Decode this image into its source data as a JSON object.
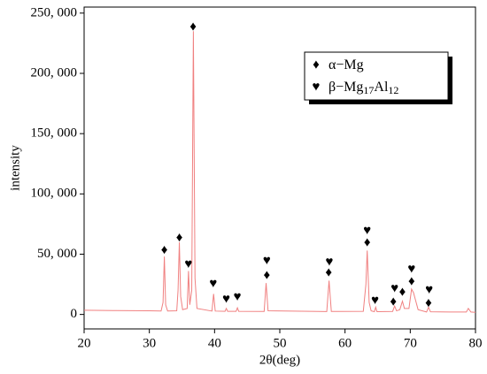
{
  "chart_data": {
    "type": "line",
    "x_label": "2θ(deg)",
    "y_label": "intensity",
    "xlim": [
      20,
      80
    ],
    "xticks": [
      20,
      30,
      40,
      50,
      60,
      70,
      80
    ],
    "ylim": [
      -12000,
      255000
    ],
    "yticks": [
      0,
      {
        "value": 50000,
        "label": "50, 000"
      },
      {
        "value": 100000,
        "label": "100, 000"
      },
      {
        "value": 150000,
        "label": "150, 000"
      },
      {
        "value": 200000,
        "label": "200, 000"
      },
      {
        "value": 250000,
        "label": "250, 000"
      }
    ],
    "series": [
      {
        "color": "#f08080",
        "x": [
          20,
          25,
          30,
          31.8,
          32.1,
          32.3,
          32.5,
          32.8,
          34.2,
          34.4,
          34.6,
          34.8,
          35.1,
          35.8,
          36.0,
          36.2,
          36.5,
          36.75,
          37.0,
          37.3,
          39.6,
          39.85,
          40.1,
          41.6,
          41.8,
          42.0,
          43.3,
          43.5,
          43.7,
          47.6,
          47.9,
          48.2,
          57.2,
          57.55,
          57.9,
          62.8,
          63.2,
          63.4,
          63.7,
          64.0,
          64.5,
          64.7,
          64.9,
          67.3,
          67.6,
          67.9,
          68.4,
          68.8,
          69.1,
          69.8,
          70.2,
          70.5,
          70.8,
          71.2,
          72.5,
          72.8,
          73.1,
          76.0,
          78.6,
          78.9,
          79.3,
          80
        ],
        "values": [
          3500,
          3200,
          3000,
          2900,
          10000,
          48000,
          8000,
          2900,
          3000,
          20000,
          60000,
          15000,
          4000,
          5000,
          36000,
          8000,
          20000,
          235000,
          30000,
          5000,
          2800,
          17000,
          2800,
          2600,
          5000,
          2600,
          2600,
          5500,
          2600,
          2500,
          26000,
          3000,
          2400,
          28000,
          2500,
          2600,
          25000,
          53000,
          10000,
          3000,
          2300,
          6000,
          2300,
          2500,
          7000,
          3000,
          4000,
          11000,
          5000,
          5000,
          21000,
          18000,
          12000,
          4000,
          2000,
          6000,
          2200,
          2000,
          2000,
          5000,
          2000,
          1800
        ]
      }
    ],
    "markers": [
      {
        "text": "♦",
        "x": 32.3,
        "y": 53000
      },
      {
        "text": "♦",
        "x": 34.6,
        "y": 63000
      },
      {
        "text": "♦",
        "x": 36.7,
        "y": 238000
      },
      {
        "text": "♥",
        "x": 36.0,
        "y": 41000
      },
      {
        "text": "♥",
        "x": 39.8,
        "y": 25000
      },
      {
        "text": "♥",
        "x": 41.8,
        "y": 12000
      },
      {
        "text": "♥",
        "x": 43.5,
        "y": 14000
      },
      {
        "text": "♥",
        "x": 48.0,
        "y": 44000
      },
      {
        "text": "♦",
        "x": 48.0,
        "y": 32000
      },
      {
        "text": "♥",
        "x": 57.6,
        "y": 43000
      },
      {
        "text": "♦",
        "x": 57.5,
        "y": 34000
      },
      {
        "text": "♥",
        "x": 63.4,
        "y": 69000
      },
      {
        "text": "♦",
        "x": 63.4,
        "y": 59000
      },
      {
        "text": "♥",
        "x": 64.6,
        "y": 11000
      },
      {
        "text": "♥",
        "x": 67.6,
        "y": 21000
      },
      {
        "text": "♦",
        "x": 67.4,
        "y": 10000
      },
      {
        "text": "♦",
        "x": 68.8,
        "y": 18000
      },
      {
        "text": "♥",
        "x": 70.2,
        "y": 37000
      },
      {
        "text": "♦",
        "x": 70.2,
        "y": 27000
      },
      {
        "text": "♥",
        "x": 72.9,
        "y": 20000
      },
      {
        "text": "♦",
        "x": 72.8,
        "y": 9000
      }
    ],
    "legend": [
      {
        "symbol": "♦",
        "label_parts": [
          "α−Mg"
        ]
      },
      {
        "symbol": "♥",
        "label_parts": [
          "β−Mg",
          "17",
          "Al",
          "12"
        ]
      }
    ]
  }
}
